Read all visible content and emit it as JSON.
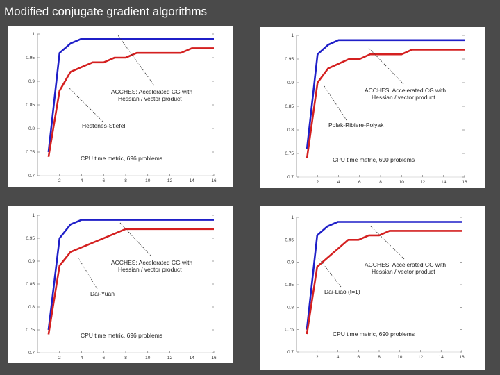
{
  "slide": {
    "title": "Modified conjugate gradient algorithms"
  },
  "colors": {
    "background": "#4a4a4a",
    "accelerated": "#1f1fc8",
    "comparison": "#d42020",
    "panel": "#ffffff"
  },
  "chart_data": [
    {
      "type": "line",
      "xlim": [
        0,
        16
      ],
      "ylim": [
        0.7,
        1
      ],
      "xticks": [
        "2",
        "4",
        "6",
        "8",
        "10",
        "12",
        "14",
        "16"
      ],
      "yticks": [
        "1",
        "0.95",
        "0.9",
        "0.85",
        "0.8",
        "0.75",
        "0.7"
      ],
      "series": [
        {
          "name": "ACCHES: Accelerated CG with Hessian / vector product",
          "color": "#1f1fc8",
          "x": [
            1,
            2,
            3,
            4,
            16
          ],
          "y": [
            0.75,
            0.96,
            0.98,
            0.99,
            0.99
          ]
        },
        {
          "name": "Hestenes-Stiefel",
          "color": "#d42020",
          "x": [
            1,
            2,
            3,
            4,
            5,
            6,
            7,
            8,
            9,
            13,
            14,
            16
          ],
          "y": [
            0.74,
            0.88,
            0.92,
            0.93,
            0.94,
            0.94,
            0.95,
            0.95,
            0.96,
            0.96,
            0.97,
            0.97
          ]
        }
      ],
      "annotations": {
        "accelerated": [
          "ACCHES: Accelerated CG with",
          "Hessian / vector product"
        ],
        "comparison": [
          "Hestenes-Stiefel"
        ],
        "metric": "CPU time metric, 696 problems"
      }
    },
    {
      "type": "line",
      "xlim": [
        0,
        16
      ],
      "ylim": [
        0.7,
        1
      ],
      "xticks": [
        "2",
        "4",
        "6",
        "8",
        "10",
        "12",
        "14",
        "16"
      ],
      "yticks": [
        "1",
        "0.95",
        "0.9",
        "0.85",
        "0.8",
        "0.75",
        "0.7"
      ],
      "series": [
        {
          "name": "ACCHES: Accelerated CG with Hessian / vector product",
          "color": "#1f1fc8",
          "x": [
            1,
            2,
            3,
            4,
            16
          ],
          "y": [
            0.76,
            0.96,
            0.98,
            0.99,
            0.99
          ]
        },
        {
          "name": "Polak-Ribiere-Polyak",
          "color": "#d42020",
          "x": [
            1,
            2,
            3,
            4,
            5,
            6,
            7,
            8,
            10,
            11,
            16
          ],
          "y": [
            0.74,
            0.9,
            0.93,
            0.94,
            0.95,
            0.95,
            0.96,
            0.96,
            0.96,
            0.97,
            0.97
          ]
        }
      ],
      "annotations": {
        "accelerated": [
          "ACCHES: Accelerated CG with",
          "Hessian / vector product"
        ],
        "comparison": [
          "Polak-Ribiere-Polyak"
        ],
        "metric": "CPU time metric, 690 problems"
      }
    },
    {
      "type": "line",
      "xlim": [
        0,
        16
      ],
      "ylim": [
        0.7,
        1
      ],
      "xticks": [
        "2",
        "4",
        "6",
        "8",
        "10",
        "12",
        "14",
        "16"
      ],
      "yticks": [
        "1",
        "0.95",
        "0.9",
        "0.85",
        "0.8",
        "0.75",
        "0.7"
      ],
      "series": [
        {
          "name": "ACCHES: Accelerated CG with Hessian / vector product",
          "color": "#1f1fc8",
          "x": [
            1,
            2,
            3,
            4,
            16
          ],
          "y": [
            0.75,
            0.95,
            0.98,
            0.99,
            0.99
          ]
        },
        {
          "name": "Dai-Yuan",
          "color": "#d42020",
          "x": [
            1,
            2,
            3,
            4,
            8,
            16
          ],
          "y": [
            0.74,
            0.89,
            0.92,
            0.93,
            0.97,
            0.97
          ]
        }
      ],
      "annotations": {
        "accelerated": [
          "ACCHES: Accelerated CG with",
          "Hessian / vector product"
        ],
        "comparison": [
          "Dai-Yuan"
        ],
        "metric": "CPU time metric, 696 problems"
      }
    },
    {
      "type": "line",
      "xlim": [
        0,
        16
      ],
      "ylim": [
        0.7,
        1
      ],
      "xticks": [
        "2",
        "4",
        "6",
        "8",
        "10",
        "12",
        "14",
        "16"
      ],
      "yticks": [
        "1",
        "0.95",
        "0.9",
        "0.85",
        "0.8",
        "0.75",
        "0.7"
      ],
      "series": [
        {
          "name": "ACCHES: Accelerated CG with Hessian / vector product",
          "color": "#1f1fc8",
          "x": [
            1,
            2,
            3,
            4,
            16
          ],
          "y": [
            0.75,
            0.96,
            0.98,
            0.99,
            0.99
          ]
        },
        {
          "name": "Dai-Liao (t=1)",
          "color": "#d42020",
          "x": [
            1,
            2,
            3,
            4,
            5,
            6,
            7,
            8,
            9,
            16
          ],
          "y": [
            0.74,
            0.89,
            0.91,
            0.93,
            0.95,
            0.95,
            0.96,
            0.96,
            0.97,
            0.97
          ]
        }
      ],
      "annotations": {
        "accelerated": [
          "ACCHES: Accelerated CG with",
          "Hessian / vector product"
        ],
        "comparison": [
          "Dai-Liao (t=1)"
        ],
        "metric": "CPU time metric, 690 problems"
      }
    }
  ]
}
